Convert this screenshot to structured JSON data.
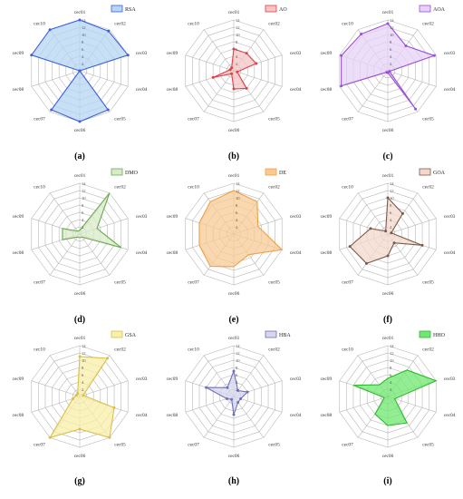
{
  "chart_data": [
    {
      "type": "radar",
      "panel_label": "(a)",
      "legend": "RSA",
      "color": "#3f5fe0",
      "fill": "#b6d6f2",
      "markers": true,
      "axes": [
        "cec01",
        "cec02",
        "cec03",
        "cec04",
        "cec05",
        "cec06",
        "cec07",
        "cec08",
        "cec09",
        "cec10"
      ],
      "ticks": [
        "0",
        "2",
        "4",
        "6",
        "8",
        "10",
        "12",
        "14"
      ],
      "rmax": 14,
      "values": [
        14,
        13.5,
        14,
        0,
        13.3,
        14,
        13.3,
        0,
        14,
        14
      ]
    },
    {
      "type": "radar",
      "panel_label": "(b)",
      "legend": "AO",
      "color": "#e0404a",
      "fill": "#f6c4c4",
      "markers": true,
      "axes": [
        "cec01",
        "cec02",
        "cec03",
        "cec04",
        "cec05",
        "cec06",
        "cec07",
        "cec08",
        "cec09",
        "cec10"
      ],
      "ticks": [
        "0",
        "2",
        "4",
        "6",
        "8",
        "10",
        "12",
        "14"
      ],
      "rmax": 14,
      "values": [
        6,
        6,
        6.5,
        1,
        6,
        5,
        1,
        6,
        1,
        1
      ]
    },
    {
      "type": "radar",
      "panel_label": "(c)",
      "legend": "AOA",
      "color": "#9a4fd8",
      "fill": "#e6d2f6",
      "markers": true,
      "axes": [
        "cec01",
        "cec02",
        "cec03",
        "cec04",
        "cec05",
        "cec06",
        "cec07",
        "cec08",
        "cec09",
        "cec10"
      ],
      "ticks": [
        "0",
        "2",
        "4",
        "6",
        "8",
        "10",
        "12",
        "14"
      ],
      "rmax": 14,
      "values": [
        13,
        8.5,
        13.5,
        0.5,
        13,
        0.5,
        0.5,
        13.5,
        13.5,
        12.5
      ]
    },
    {
      "type": "radar",
      "panel_label": "(d)",
      "legend": "DMO",
      "color": "#6aa84f",
      "fill": "#d8ebc8",
      "markers": false,
      "axes": [
        "cec01",
        "cec02",
        "cec03",
        "cec04",
        "cec05",
        "cec06",
        "cec07",
        "cec08",
        "cec09",
        "cec10"
      ],
      "ticks": [
        "0",
        "2",
        "4",
        "6",
        "8",
        "10",
        "12",
        "14"
      ],
      "rmax": 14,
      "values": [
        1,
        14,
        5,
        12,
        1,
        1,
        1,
        5,
        5,
        1
      ]
    },
    {
      "type": "radar",
      "panel_label": "(e)",
      "legend": "DE",
      "color": "#ef9f4a",
      "fill": "#f7c994",
      "markers": false,
      "axes": [
        "cec01",
        "cec02",
        "cec03",
        "cec04",
        "cec05",
        "cec06",
        "cec07",
        "cec08",
        "cec09",
        "cec10"
      ],
      "ticks": [
        "0",
        "2",
        "4",
        "6",
        "8",
        "10",
        "12",
        "14"
      ],
      "rmax": 14,
      "values": [
        12,
        11,
        7,
        14,
        7,
        9,
        11,
        10,
        10,
        11
      ]
    },
    {
      "type": "radar",
      "panel_label": "(f)",
      "legend": "GOA",
      "color": "#7a5a4a",
      "fill": "#f4d8cc",
      "markers": true,
      "axes": [
        "cec01",
        "cec02",
        "cec03",
        "cec04",
        "cec05",
        "cec06",
        "cec07",
        "cec08",
        "cec09",
        "cec10"
      ],
      "ticks": [
        "0",
        "2",
        "4",
        "6",
        "8",
        "10",
        "12",
        "14"
      ],
      "rmax": 14,
      "values": [
        10,
        7,
        1,
        10,
        3,
        6,
        10,
        11,
        5,
        1
      ]
    },
    {
      "type": "radar",
      "panel_label": "(g)",
      "legend": "GSA",
      "color": "#d8c04a",
      "fill": "#f8efa8",
      "markers": true,
      "axes": [
        "cec01",
        "cec02",
        "cec03",
        "cec04",
        "cec05",
        "cec06",
        "cec07",
        "cec08",
        "cec09",
        "cec10"
      ],
      "ticks": [
        "0",
        "2",
        "4",
        "6",
        "8",
        "10",
        "12",
        "14"
      ],
      "rmax": 14,
      "values": [
        11,
        13,
        1,
        10,
        14,
        9,
        14,
        2,
        1,
        1
      ]
    },
    {
      "type": "radar",
      "panel_label": "(h)",
      "legend": "HBA",
      "color": "#7070b8",
      "fill": "#d6d6ef",
      "markers": true,
      "axes": [
        "cec01",
        "cec02",
        "cec03",
        "cec04",
        "cec05",
        "cec06",
        "cec07",
        "cec08",
        "cec09",
        "cec10"
      ],
      "ticks": [
        "0",
        "2",
        "4",
        "6",
        "8",
        "10",
        "12",
        "14"
      ],
      "rmax": 14,
      "values": [
        7,
        2,
        4,
        2,
        2,
        5,
        1,
        2,
        8,
        3
      ]
    },
    {
      "type": "radar",
      "panel_label": "(i)",
      "legend": "HHO",
      "color": "#2fb82f",
      "fill": "#6fe86f",
      "markers": false,
      "axes": [
        "cec01",
        "cec02",
        "cec03",
        "cec04",
        "cec05",
        "cec06",
        "cec07",
        "cec08",
        "cec09",
        "cec10"
      ],
      "ticks": [
        "0",
        "2",
        "4",
        "6",
        "8",
        "10",
        "12",
        "14"
      ],
      "rmax": 14,
      "values": [
        5,
        9,
        14,
        2,
        9,
        8,
        6,
        1,
        10,
        4
      ]
    }
  ]
}
